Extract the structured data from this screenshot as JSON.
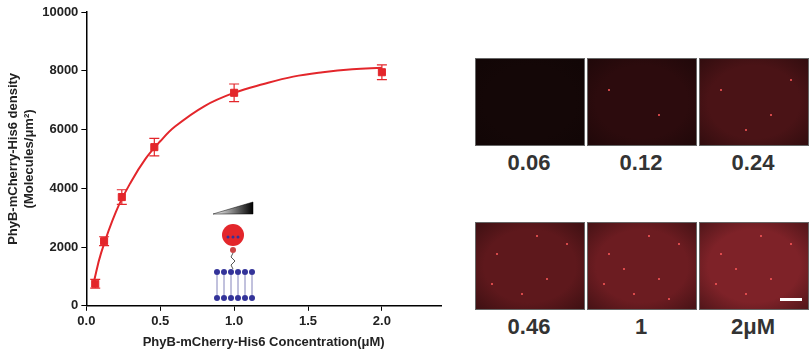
{
  "chart_data": {
    "type": "scatter",
    "x_label": "PhyB-mCherry-His6 Concentration(μM)",
    "y_label": [
      "PhyB-mCherry-His6 density",
      "(Molecules/μm²)"
    ],
    "xlim": [
      0,
      2.4
    ],
    "xticks": [
      {
        "value": 0,
        "label": "0.0"
      },
      {
        "value": 0.5,
        "label": "0.5"
      },
      {
        "value": 1,
        "label": "1.0"
      },
      {
        "value": 1.5,
        "label": "1.5"
      },
      {
        "value": 2,
        "label": "2.0"
      }
    ],
    "ylim": [
      0,
      10000
    ],
    "yticks": [
      0,
      2000,
      4000,
      6000,
      8000,
      10000
    ],
    "grid": false,
    "series": [
      {
        "type": "scatter",
        "color": "#e3262b",
        "marker": "square",
        "x": [
          0.06,
          0.12,
          0.24,
          0.46,
          1,
          2
        ],
        "values": [
          750,
          2200,
          3700,
          5400,
          7250,
          7950
        ],
        "errors": [
          150,
          150,
          250,
          300,
          300,
          250
        ]
      },
      {
        "type": "line",
        "color": "#e3262b",
        "line_style": "solid",
        "x": [
          0.05,
          0.1,
          0.2,
          0.3,
          0.4,
          0.5,
          0.6,
          0.8,
          1.0,
          1.2,
          1.4,
          1.6,
          1.8,
          2.0
        ],
        "values": [
          800,
          1800,
          3200,
          4200,
          5000,
          5600,
          6100,
          6800,
          7250,
          7550,
          7800,
          7950,
          8050,
          8100
        ]
      }
    ]
  },
  "panels": [
    {
      "label": "0.06",
      "color": "#140707"
    },
    {
      "label": "0.12",
      "color": "#2c0b0d"
    },
    {
      "label": "0.24",
      "color": "#4a1316"
    },
    {
      "label": "0.46",
      "color": "#5e181c"
    },
    {
      "label": "1",
      "color": "#6c1c21"
    },
    {
      "label": "2μM",
      "color": "#7e2228"
    }
  ]
}
